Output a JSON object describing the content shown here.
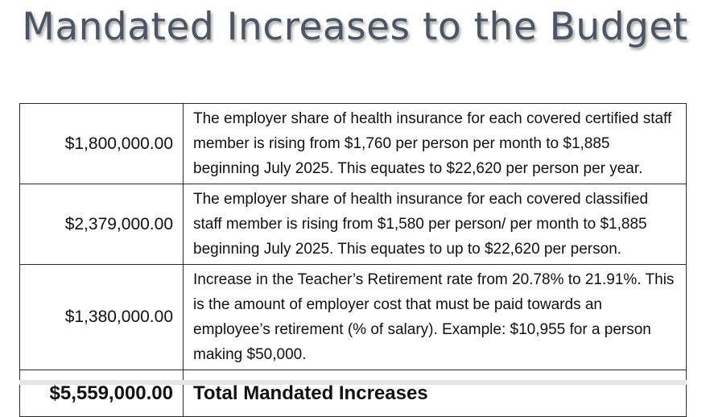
{
  "title": "Mandated Increases to the Budget",
  "rows": [
    {
      "amount": "$1,800,000.00",
      "description": "The employer share of health insurance for each covered certified staff member is rising from $1,760 per person per month to $1,885 beginning July 2025.  This equates to $22,620 per person per year."
    },
    {
      "amount": "$2,379,000.00",
      "description": "The employer share of health insurance for each covered classified staff member is rising from $1,580 per person/ per month to $1,885 beginning July 2025.  This equates to up to $22,620 per person."
    },
    {
      "amount": "$1,380,000.00",
      "description": "Increase in the Teacher’s Retirement rate from 20.78% to 21.91%. This is the amount of employer cost that must be paid towards an employee’s retirement (% of salary). Example: $10,955 for a person making $50,000."
    }
  ],
  "total": {
    "amount": "$5,559,000.00",
    "label": "Total Mandated Increases"
  }
}
